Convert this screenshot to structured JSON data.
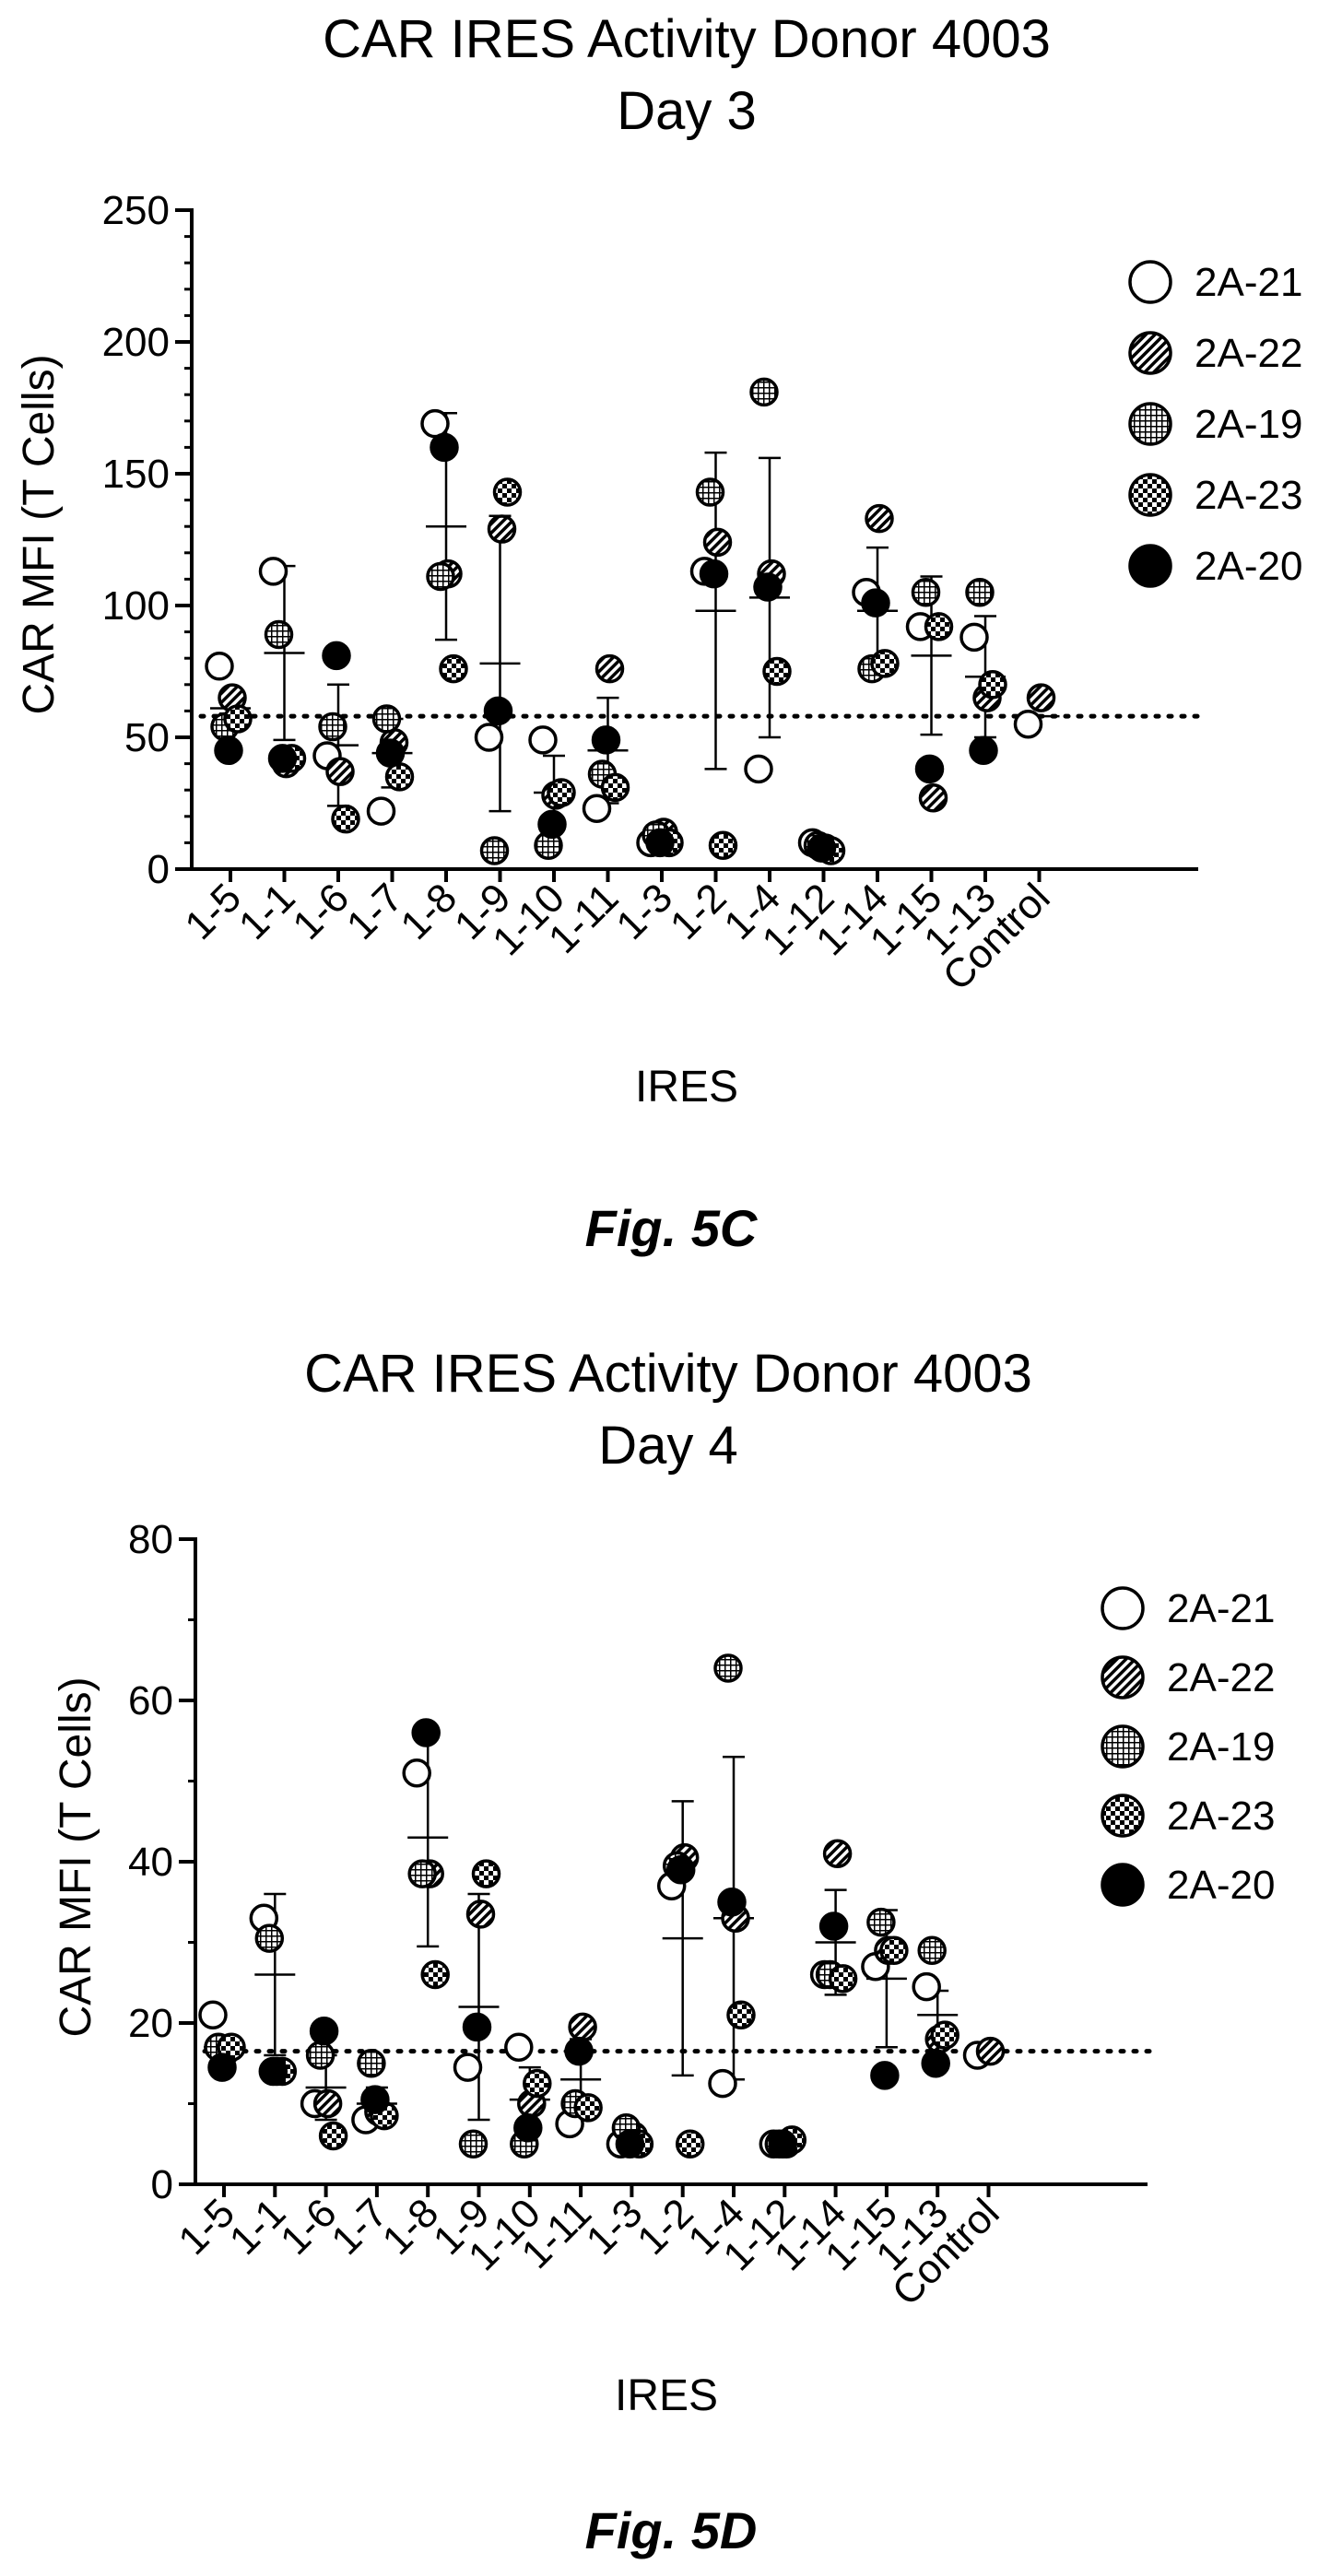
{
  "chart_data": [
    {
      "type": "scatter",
      "title": "CAR IRES Activity Donor 4003",
      "subtitle": "Day 3",
      "xlabel": "IRES",
      "ylabel": "CAR MFI (T Cells)",
      "ylim": [
        0,
        250
      ],
      "yticks": [
        0,
        50,
        100,
        150,
        200,
        250
      ],
      "categories": [
        "1-5",
        "1-1",
        "1-6",
        "1-7",
        "1-8",
        "1-9",
        "1-10",
        "1-11",
        "1-3",
        "1-2",
        "1-4",
        "1-12",
        "1-14",
        "1-15",
        "1-13",
        "Control"
      ],
      "reference_line": 58,
      "legend_position": "top-right",
      "series": [
        {
          "name": "2A-21",
          "pattern": "open",
          "values": [
            77,
            113,
            43,
            22,
            169,
            50,
            49,
            23,
            10,
            113,
            38,
            10,
            105,
            92,
            88,
            55
          ]
        },
        {
          "name": "2A-22",
          "pattern": "hatched",
          "values": [
            65,
            40,
            37,
            48,
            112,
            129,
            28,
            76,
            14,
            124,
            112,
            8,
            133,
            27,
            65,
            65
          ]
        },
        {
          "name": "2A-19",
          "pattern": "grid",
          "values": [
            54,
            89,
            54,
            57,
            111,
            7,
            9,
            36,
            13,
            143,
            181,
            9,
            76,
            105,
            105,
            null
          ]
        },
        {
          "name": "2A-23",
          "pattern": "checker",
          "values": [
            57,
            42,
            19,
            35,
            76,
            143,
            29,
            31,
            10,
            9,
            75,
            7,
            78,
            92,
            70,
            null
          ]
        },
        {
          "name": "2A-20",
          "pattern": "solid",
          "values": [
            45,
            42,
            81,
            44,
            160,
            60,
            17,
            49,
            10,
            112,
            107,
            8,
            101,
            38,
            45,
            null
          ]
        }
      ],
      "mean": [
        61,
        82,
        47,
        44,
        130,
        78,
        29,
        45,
        11,
        98,
        103,
        9,
        98,
        81,
        73,
        58
      ],
      "sd": [
        2,
        33,
        23,
        13,
        43,
        56,
        14,
        20,
        2,
        60,
        53,
        1,
        24,
        30,
        23,
        0
      ]
    },
    {
      "type": "scatter",
      "title": "CAR IRES Activity Donor 4003",
      "subtitle": "Day 4",
      "xlabel": "IRES",
      "ylabel": "CAR MFI (T Cells)",
      "ylim": [
        0,
        80
      ],
      "yticks": [
        0,
        20,
        40,
        60,
        80
      ],
      "categories": [
        "1-5",
        "1-1",
        "1-6",
        "1-7",
        "1-8",
        "1-9",
        "1-10",
        "1-11",
        "1-3",
        "1-2",
        "1-4",
        "1-12",
        "1-14",
        "1-15",
        "1-13",
        "Control"
      ],
      "reference_line": 16.5,
      "legend_position": "top-right",
      "series": [
        {
          "name": "2A-21",
          "pattern": "open",
          "values": [
            21,
            33,
            10,
            8,
            51,
            14.5,
            17,
            7.5,
            5,
            37,
            12.5,
            5,
            26,
            27,
            24.5,
            16
          ]
        },
        {
          "name": "2A-22",
          "pattern": "hatched",
          "values": [
            16.5,
            14,
            10,
            9,
            38.5,
            33.5,
            10,
            19.5,
            6,
            40.5,
            33,
            5,
            41,
            29,
            18,
            16.5
          ]
        },
        {
          "name": "2A-19",
          "pattern": "grid",
          "values": [
            17,
            30.5,
            16,
            15,
            38.5,
            5,
            5,
            10,
            7,
            39.5,
            64,
            5,
            26,
            32.5,
            29,
            null
          ]
        },
        {
          "name": "2A-23",
          "pattern": "checker",
          "values": [
            17,
            14,
            6,
            8.5,
            26,
            38.5,
            12.5,
            9.5,
            5,
            5,
            21,
            5.5,
            25.5,
            29,
            18.5,
            null
          ]
        },
        {
          "name": "2A-20",
          "pattern": "solid",
          "values": [
            14.5,
            14,
            19,
            10.5,
            56,
            19.5,
            7,
            16.5,
            5,
            39,
            35,
            5,
            32,
            13.5,
            15,
            null
          ]
        }
      ],
      "mean": [
        17,
        26,
        12,
        10,
        43,
        22,
        10.5,
        13,
        5.5,
        30.5,
        33,
        5.2,
        30,
        25.5,
        21,
        16.5
      ],
      "sd": [
        1,
        10,
        4,
        2,
        13.5,
        14,
        4,
        5,
        1,
        17,
        20,
        0.3,
        6.5,
        8.5,
        3,
        0
      ]
    }
  ],
  "captions": [
    "Fig. 5C",
    "Fig. 5D"
  ],
  "colors": {
    "ink": "#000000",
    "background": "#ffffff"
  }
}
